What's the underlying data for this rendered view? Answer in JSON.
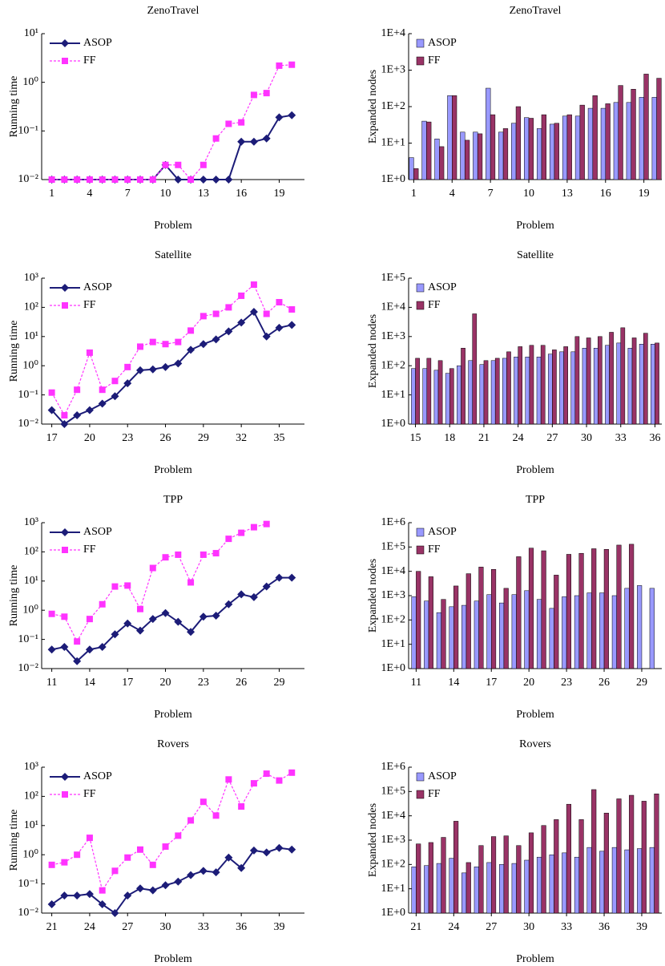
{
  "chart_data": [
    {
      "type": "line",
      "title": "ZenoTravel",
      "xlabel": "Problem",
      "ylabel": "Running time",
      "x": [
        1,
        2,
        3,
        4,
        5,
        6,
        7,
        8,
        9,
        10,
        11,
        12,
        13,
        14,
        15,
        16,
        17,
        18,
        19,
        20
      ],
      "xlim": [
        0.2,
        21
      ],
      "xticks": [
        1,
        4,
        7,
        10,
        13,
        16,
        19
      ],
      "ylim": [
        0.01,
        10
      ],
      "yticks": [
        {
          "value": 0.01,
          "label": "10⁻²"
        },
        {
          "value": 0.1,
          "label": "10⁻¹"
        },
        {
          "value": 1,
          "label": "10⁰"
        },
        {
          "value": 10,
          "label": "10¹"
        }
      ],
      "log_scale_y": true,
      "legend": "upper left",
      "series": [
        {
          "name": "ASOP",
          "color": "#1c1c78",
          "values": [
            0.01,
            0.01,
            0.01,
            0.01,
            0.01,
            0.01,
            0.01,
            0.01,
            0.01,
            0.02,
            0.01,
            0.01,
            0.01,
            0.01,
            0.01,
            0.06,
            0.06,
            0.07,
            0.19,
            0.21
          ]
        },
        {
          "name": "FF",
          "color": "#ff33ff",
          "values": [
            0.01,
            0.01,
            0.01,
            0.01,
            0.01,
            0.01,
            0.01,
            0.01,
            0.01,
            0.02,
            0.02,
            0.01,
            0.02,
            0.07,
            0.14,
            0.15,
            0.55,
            0.6,
            2.2,
            2.3
          ]
        }
      ]
    },
    {
      "type": "bar",
      "title": "ZenoTravel",
      "xlabel": "Problem",
      "ylabel": "Expanded nodes",
      "x": [
        1,
        2,
        3,
        4,
        5,
        6,
        7,
        8,
        9,
        10,
        11,
        12,
        13,
        14,
        15,
        16,
        17,
        18,
        19,
        20
      ],
      "xlim": [
        0.6,
        20.4
      ],
      "xticks": [
        1,
        4,
        7,
        10,
        13,
        16,
        19
      ],
      "ylim": [
        1,
        10000
      ],
      "yticks": [
        {
          "value": 1,
          "label": "1E+0"
        },
        {
          "value": 10,
          "label": "1E+1"
        },
        {
          "value": 100,
          "label": "1E+2"
        },
        {
          "value": 1000,
          "label": "1E+3"
        },
        {
          "value": 10000,
          "label": "1E+4"
        }
      ],
      "log_scale_y": true,
      "legend": "upper left",
      "series": [
        {
          "name": "ASOP",
          "color": "#9999ff",
          "values": [
            4,
            40,
            13,
            200,
            20,
            20,
            320,
            20,
            35,
            50,
            25,
            33,
            55,
            55,
            90,
            90,
            130,
            130,
            180,
            180
          ]
        },
        {
          "name": "FF",
          "color": "#993366",
          "values": [
            2,
            38,
            8,
            200,
            12,
            18,
            60,
            25,
            100,
            48,
            60,
            35,
            60,
            110,
            200,
            120,
            380,
            300,
            780,
            600
          ]
        }
      ]
    },
    {
      "type": "line",
      "title": "Satellite",
      "xlabel": "Problem",
      "ylabel": "Running time",
      "x": [
        17,
        18,
        19,
        20,
        21,
        22,
        23,
        24,
        25,
        26,
        27,
        28,
        29,
        30,
        31,
        32,
        33,
        34,
        35,
        36
      ],
      "xlim": [
        16.2,
        37
      ],
      "xticks": [
        17,
        20,
        23,
        26,
        29,
        32,
        35
      ],
      "ylim": [
        0.01,
        1000
      ],
      "yticks": [
        {
          "value": 0.01,
          "label": "10⁻²"
        },
        {
          "value": 0.1,
          "label": "10⁻¹"
        },
        {
          "value": 1,
          "label": "10⁰"
        },
        {
          "value": 10,
          "label": "10¹"
        },
        {
          "value": 100,
          "label": "10²"
        },
        {
          "value": 1000,
          "label": "10³"
        }
      ],
      "log_scale_y": true,
      "legend": "upper left",
      "series": [
        {
          "name": "ASOP",
          "color": "#1c1c78",
          "values": [
            0.03,
            0.01,
            0.02,
            0.03,
            0.05,
            0.09,
            0.25,
            0.7,
            0.75,
            0.9,
            1.2,
            3.5,
            5.5,
            8,
            15,
            30,
            70,
            10,
            20,
            25
          ]
        },
        {
          "name": "FF",
          "color": "#ff33ff",
          "values": [
            0.12,
            0.02,
            0.15,
            2.8,
            0.15,
            0.3,
            0.9,
            4.5,
            6.5,
            5.5,
            6.5,
            16,
            50,
            60,
            100,
            250,
            600,
            60,
            150,
            85
          ]
        }
      ]
    },
    {
      "type": "bar",
      "title": "Satellite",
      "xlabel": "Problem",
      "ylabel": "Expanded nodes",
      "x": [
        15,
        16,
        17,
        18,
        19,
        20,
        21,
        22,
        23,
        24,
        25,
        26,
        27,
        28,
        29,
        30,
        31,
        32,
        33,
        34,
        35,
        36
      ],
      "xlim": [
        14.4,
        36.6
      ],
      "xticks": [
        15,
        18,
        21,
        24,
        27,
        30,
        33,
        36
      ],
      "ylim": [
        1,
        100000
      ],
      "yticks": [
        {
          "value": 1,
          "label": "1E+0"
        },
        {
          "value": 10,
          "label": "1E+1"
        },
        {
          "value": 100,
          "label": "1E+2"
        },
        {
          "value": 1000,
          "label": "1E+3"
        },
        {
          "value": 10000,
          "label": "1E+4"
        },
        {
          "value": 100000,
          "label": "1E+5"
        }
      ],
      "log_scale_y": true,
      "legend": "upper left",
      "series": [
        {
          "name": "ASOP",
          "color": "#9999ff",
          "values": [
            80,
            80,
            70,
            55,
            100,
            150,
            110,
            150,
            180,
            200,
            200,
            200,
            250,
            300,
            300,
            400,
            400,
            500,
            600,
            400,
            550,
            550
          ]
        },
        {
          "name": "FF",
          "color": "#993366",
          "values": [
            180,
            180,
            150,
            80,
            400,
            6000,
            150,
            180,
            300,
            450,
            500,
            500,
            350,
            450,
            1000,
            900,
            1000,
            1400,
            2000,
            900,
            1300,
            600
          ]
        }
      ]
    },
    {
      "type": "line",
      "title": "TPP",
      "xlabel": "Problem",
      "ylabel": "Running time",
      "x": [
        11,
        12,
        13,
        14,
        15,
        16,
        17,
        18,
        19,
        20,
        21,
        22,
        23,
        24,
        25,
        26,
        27,
        28,
        29,
        30
      ],
      "xlim": [
        10.2,
        31
      ],
      "xticks": [
        11,
        14,
        17,
        20,
        23,
        26,
        29
      ],
      "ylim": [
        0.01,
        1000
      ],
      "yticks": [
        {
          "value": 0.01,
          "label": "10⁻²"
        },
        {
          "value": 0.1,
          "label": "10⁻¹"
        },
        {
          "value": 1,
          "label": "10⁰"
        },
        {
          "value": 10,
          "label": "10¹"
        },
        {
          "value": 100,
          "label": "10²"
        },
        {
          "value": 1000,
          "label": "10³"
        }
      ],
      "log_scale_y": true,
      "legend": "upper left",
      "series": [
        {
          "name": "ASOP",
          "color": "#1c1c78",
          "values": [
            0.045,
            0.055,
            0.018,
            0.045,
            0.055,
            0.15,
            0.35,
            0.2,
            0.5,
            0.8,
            0.4,
            0.18,
            0.6,
            0.65,
            1.6,
            3.5,
            2.8,
            6.5,
            13,
            13
          ]
        },
        {
          "name": "FF",
          "color": "#ff33ff",
          "values": [
            0.75,
            0.6,
            0.085,
            0.5,
            1.6,
            6.5,
            7,
            1.1,
            28,
            65,
            80,
            9,
            80,
            90,
            280,
            450,
            700,
            900,
            null,
            null
          ]
        }
      ]
    },
    {
      "type": "bar",
      "title": "TPP",
      "xlabel": "Problem",
      "ylabel": "Expanded nodes",
      "x": [
        11,
        12,
        13,
        14,
        15,
        16,
        17,
        18,
        19,
        20,
        21,
        22,
        23,
        24,
        25,
        26,
        27,
        28,
        29,
        30
      ],
      "xlim": [
        10.4,
        30.6
      ],
      "xticks": [
        11,
        14,
        17,
        20,
        23,
        26,
        29
      ],
      "ylim": [
        1,
        1000000
      ],
      "yticks": [
        {
          "value": 1,
          "label": "1E+0"
        },
        {
          "value": 10,
          "label": "1E+1"
        },
        {
          "value": 100,
          "label": "1E+2"
        },
        {
          "value": 1000,
          "label": "1E+3"
        },
        {
          "value": 10000,
          "label": "1E+4"
        },
        {
          "value": 100000,
          "label": "1E+5"
        },
        {
          "value": 1000000,
          "label": "1E+6"
        }
      ],
      "log_scale_y": true,
      "legend": "upper left",
      "series": [
        {
          "name": "ASOP",
          "color": "#9999ff",
          "values": [
            900,
            600,
            200,
            350,
            400,
            600,
            1100,
            500,
            1100,
            1600,
            700,
            300,
            900,
            1000,
            1300,
            1300,
            1000,
            2000,
            2600,
            2000
          ]
        },
        {
          "name": "FF",
          "color": "#993366",
          "values": [
            10000,
            6000,
            700,
            2500,
            8000,
            15000,
            12000,
            2000,
            40000,
            90000,
            70000,
            7000,
            50000,
            55000,
            85000,
            80000,
            120000,
            130000,
            null,
            null
          ]
        }
      ]
    },
    {
      "type": "line",
      "title": "Rovers",
      "xlabel": "Problem",
      "ylabel": "Running time",
      "x": [
        21,
        22,
        23,
        24,
        25,
        26,
        27,
        28,
        29,
        30,
        31,
        32,
        33,
        34,
        35,
        36,
        37,
        38,
        39,
        40
      ],
      "xlim": [
        20.2,
        41
      ],
      "xticks": [
        21,
        24,
        27,
        30,
        33,
        36,
        39
      ],
      "ylim": [
        0.01,
        1000
      ],
      "yticks": [
        {
          "value": 0.01,
          "label": "10⁻²"
        },
        {
          "value": 0.1,
          "label": "10⁻¹"
        },
        {
          "value": 1,
          "label": "10⁰"
        },
        {
          "value": 10,
          "label": "10¹"
        },
        {
          "value": 100,
          "label": "10²"
        },
        {
          "value": 1000,
          "label": "10³"
        }
      ],
      "log_scale_y": true,
      "legend": "upper left",
      "series": [
        {
          "name": "ASOP",
          "color": "#1c1c78",
          "values": [
            0.02,
            0.04,
            0.04,
            0.045,
            0.02,
            0.01,
            0.04,
            0.07,
            0.06,
            0.09,
            0.12,
            0.2,
            0.28,
            0.25,
            0.8,
            0.35,
            1.4,
            1.2,
            1.7,
            1.5
          ]
        },
        {
          "name": "FF",
          "color": "#ff33ff",
          "values": [
            0.45,
            0.55,
            1,
            3.8,
            0.06,
            0.28,
            0.8,
            1.5,
            0.45,
            1.9,
            4.5,
            15,
            65,
            22,
            380,
            45,
            280,
            600,
            350,
            650
          ]
        }
      ]
    },
    {
      "type": "bar",
      "title": "Rovers",
      "xlabel": "Problem",
      "ylabel": "Expanded nodes",
      "x": [
        21,
        22,
        23,
        24,
        25,
        26,
        27,
        28,
        29,
        30,
        31,
        32,
        33,
        34,
        35,
        36,
        37,
        38,
        39,
        40
      ],
      "xlim": [
        20.4,
        40.6
      ],
      "xticks": [
        21,
        24,
        27,
        30,
        33,
        36,
        39
      ],
      "ylim": [
        1,
        1000000
      ],
      "yticks": [
        {
          "value": 1,
          "label": "1E+0"
        },
        {
          "value": 10,
          "label": "1E+1"
        },
        {
          "value": 100,
          "label": "1E+2"
        },
        {
          "value": 1000,
          "label": "1E+3"
        },
        {
          "value": 10000,
          "label": "1E+4"
        },
        {
          "value": 100000,
          "label": "1E+5"
        },
        {
          "value": 1000000,
          "label": "1E+6"
        }
      ],
      "log_scale_y": true,
      "legend": "upper left",
      "series": [
        {
          "name": "ASOP",
          "color": "#9999ff",
          "values": [
            80,
            90,
            110,
            180,
            45,
            80,
            120,
            100,
            110,
            150,
            200,
            250,
            300,
            200,
            500,
            350,
            500,
            400,
            450,
            500
          ]
        },
        {
          "name": "FF",
          "color": "#993366",
          "values": [
            700,
            800,
            1300,
            6000,
            120,
            600,
            1400,
            1500,
            600,
            2000,
            4000,
            7000,
            30000,
            7000,
            120000,
            13000,
            50000,
            70000,
            40000,
            80000
          ]
        }
      ]
    }
  ]
}
